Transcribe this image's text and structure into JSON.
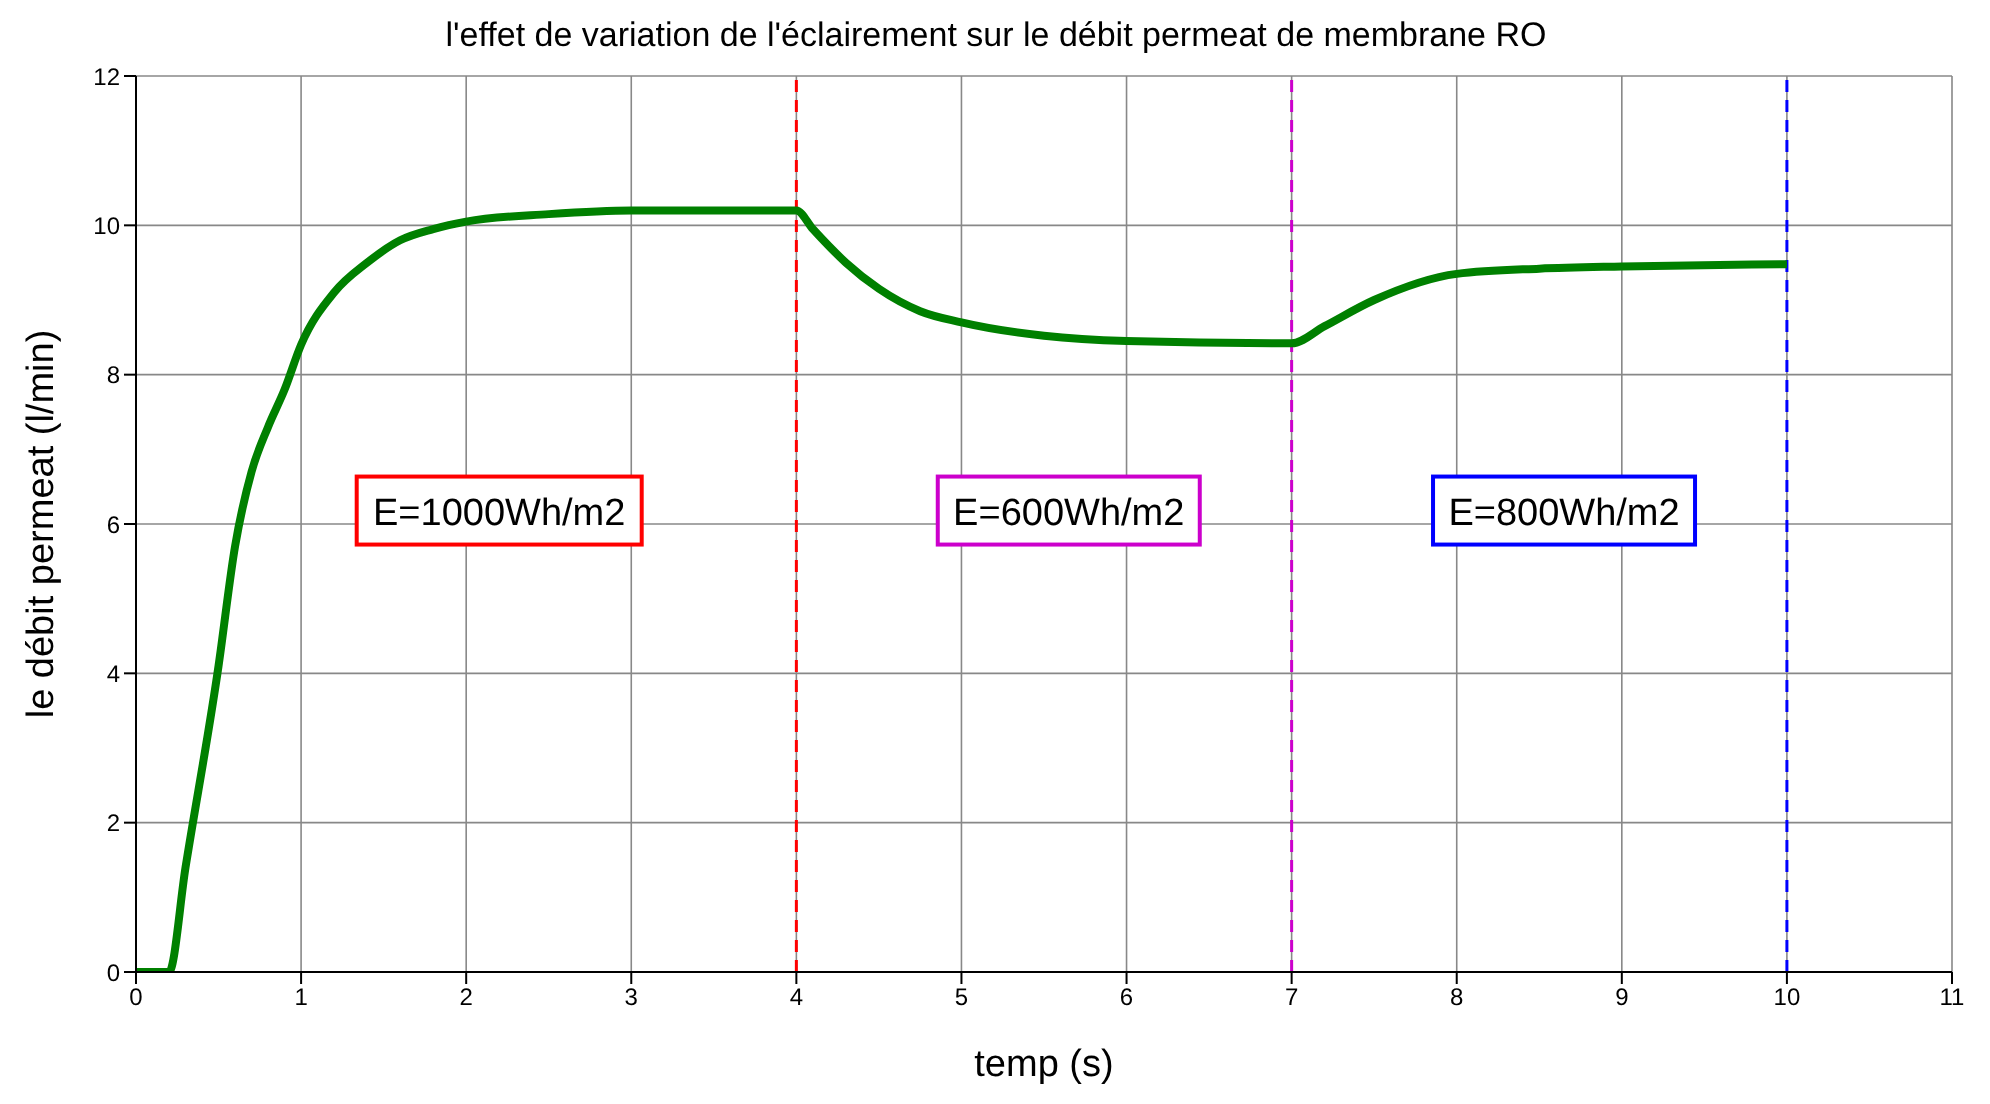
{
  "chart_data": {
    "type": "line",
    "title": "l'effet de variation de l'éclairement sur le débit permeat de membrane RO",
    "xlabel": "temp (s)",
    "ylabel": "le débit permeat (l/min)",
    "x": [
      0,
      0.2,
      0.3,
      0.5,
      0.6,
      0.7,
      0.8,
      0.9,
      1.0,
      1.2,
      1.4,
      1.6,
      1.8,
      2.0,
      2.5,
      3.0,
      4.0,
      4.1,
      4.3,
      4.5,
      4.75,
      5.0,
      5.5,
      6.0,
      7.0,
      7.2,
      7.5,
      8.0,
      8.5,
      9.0,
      10.0
    ],
    "series": [
      {
        "color": "#008000",
        "values": [
          0,
          0,
          1.4,
          4.1,
          5.7,
          6.7,
          7.3,
          7.8,
          8.4,
          9.1,
          9.5,
          9.8,
          9.95,
          10.05,
          10.15,
          10.2,
          10.2,
          9.95,
          9.5,
          9.15,
          8.85,
          8.7,
          8.52,
          8.45,
          8.42,
          8.65,
          9.0,
          9.35,
          9.42,
          9.45,
          9.48
        ]
      }
    ],
    "xlim": [
      0,
      11
    ],
    "xticks": [
      0,
      1,
      2,
      3,
      4,
      5,
      6,
      7,
      8,
      9,
      10,
      11
    ],
    "ylim": [
      0,
      12
    ],
    "yticks": [
      0,
      2,
      4,
      6,
      8,
      10,
      12
    ],
    "grid": true,
    "line_style": "solid",
    "marker": "none",
    "ref_lines": [
      {
        "axis": "x",
        "value": 4,
        "color": "#ff0000",
        "line_style": "dashed"
      },
      {
        "axis": "x",
        "value": 7,
        "color": "#cc00cc",
        "line_style": "dashed"
      },
      {
        "axis": "x",
        "value": 10,
        "color": "#0000ff",
        "line_style": "dashed"
      }
    ],
    "annotations": [
      "E=1000Wh/m2",
      "E=600Wh/m2",
      "E=800Wh/m2"
    ]
  }
}
